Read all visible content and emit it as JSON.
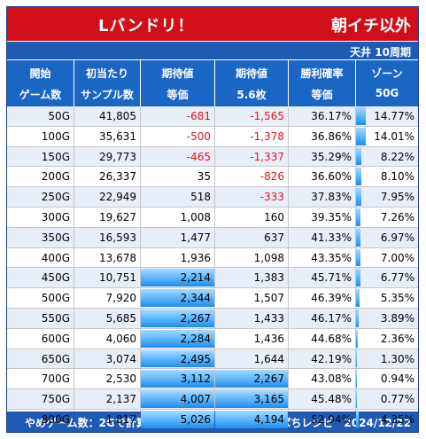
{
  "title": {
    "left": "Lバンドリ！",
    "right": "朝イチ以外"
  },
  "ceiling_label": "天井 10周期",
  "headers": [
    {
      "line1": "開始",
      "line2": "ゲーム数"
    },
    {
      "line1": "初当たり",
      "line2": "サンプル数"
    },
    {
      "line1": "期待値",
      "line2": "等価"
    },
    {
      "line1": "期待値",
      "line2": "5.6枚"
    },
    {
      "line1": "勝利確率",
      "line2": "等価"
    },
    {
      "line1": "ゾーン",
      "line2": "50G"
    }
  ],
  "rows": [
    {
      "start": "50G",
      "samples": "41,805",
      "ev_eq": "-681",
      "ev_56": "-1,565",
      "win": "36.17%",
      "zone": "14.77%",
      "ev_eq_bar": 0,
      "ev_56_bar": 0,
      "zone_bar": 0.148
    },
    {
      "start": "100G",
      "samples": "35,631",
      "ev_eq": "-500",
      "ev_56": "-1,378",
      "win": "36.86%",
      "zone": "14.01%",
      "ev_eq_bar": 0,
      "ev_56_bar": 0,
      "zone_bar": 0.14
    },
    {
      "start": "150G",
      "samples": "29,773",
      "ev_eq": "-465",
      "ev_56": "-1,337",
      "win": "35.29%",
      "zone": "8.22%",
      "ev_eq_bar": 0,
      "ev_56_bar": 0,
      "zone_bar": 0.082
    },
    {
      "start": "200G",
      "samples": "26,337",
      "ev_eq": "35",
      "ev_56": "-826",
      "win": "36.60%",
      "zone": "8.10%",
      "ev_eq_bar": 0,
      "ev_56_bar": 0,
      "zone_bar": 0.081
    },
    {
      "start": "250G",
      "samples": "22,949",
      "ev_eq": "518",
      "ev_56": "-333",
      "win": "37.83%",
      "zone": "7.95%",
      "ev_eq_bar": 0,
      "ev_56_bar": 0,
      "zone_bar": 0.0795
    },
    {
      "start": "300G",
      "samples": "19,627",
      "ev_eq": "1,008",
      "ev_56": "160",
      "win": "39.35%",
      "zone": "7.26%",
      "ev_eq_bar": 0,
      "ev_56_bar": 0,
      "zone_bar": 0.0726
    },
    {
      "start": "350G",
      "samples": "16,593",
      "ev_eq": "1,477",
      "ev_56": "637",
      "win": "41.33%",
      "zone": "6.97%",
      "ev_eq_bar": 0,
      "ev_56_bar": 0,
      "zone_bar": 0.0697
    },
    {
      "start": "400G",
      "samples": "13,678",
      "ev_eq": "1,936",
      "ev_56": "1,098",
      "win": "43.35%",
      "zone": "7.00%",
      "ev_eq_bar": 0,
      "ev_56_bar": 0,
      "zone_bar": 0.07
    },
    {
      "start": "450G",
      "samples": "10,751",
      "ev_eq": "2,214",
      "ev_56": "1,383",
      "win": "45.71%",
      "zone": "6.77%",
      "ev_eq_bar": 1,
      "ev_56_bar": 0,
      "zone_bar": 0.0677
    },
    {
      "start": "500G",
      "samples": "7,920",
      "ev_eq": "2,344",
      "ev_56": "1,507",
      "win": "46.39%",
      "zone": "5.35%",
      "ev_eq_bar": 1,
      "ev_56_bar": 0,
      "zone_bar": 0.0535
    },
    {
      "start": "550G",
      "samples": "5,685",
      "ev_eq": "2,267",
      "ev_56": "1,433",
      "win": "46.17%",
      "zone": "3.89%",
      "ev_eq_bar": 1,
      "ev_56_bar": 0,
      "zone_bar": 0.0389
    },
    {
      "start": "600G",
      "samples": "4,060",
      "ev_eq": "2,284",
      "ev_56": "1,436",
      "win": "44.68%",
      "zone": "2.36%",
      "ev_eq_bar": 1,
      "ev_56_bar": 0,
      "zone_bar": 0.0236
    },
    {
      "start": "650G",
      "samples": "3,074",
      "ev_eq": "2,495",
      "ev_56": "1,644",
      "win": "42.19%",
      "zone": "1.30%",
      "ev_eq_bar": 1,
      "ev_56_bar": 0,
      "zone_bar": 0.013
    },
    {
      "start": "700G",
      "samples": "2,530",
      "ev_eq": "3,112",
      "ev_56": "2,267",
      "win": "43.08%",
      "zone": "0.94%",
      "ev_eq_bar": 1,
      "ev_56_bar": 1,
      "zone_bar": 0.0094
    },
    {
      "start": "750G",
      "samples": "2,137",
      "ev_eq": "4,007",
      "ev_56": "3,165",
      "win": "45.48%",
      "zone": "0.77%",
      "ev_eq_bar": 1,
      "ev_56_bar": 1,
      "zone_bar": 0.0077
    },
    {
      "start": "800G",
      "samples": "1,817",
      "ev_eq": "5,026",
      "ev_56": "4,194",
      "win": "52.94%",
      "zone": "4.35%",
      "ev_eq_bar": 1,
      "ev_56_bar": 1,
      "zone_bar": 0.0435
    }
  ],
  "footer": {
    "left": "やめゲーム数：2Gで計算",
    "right": "すろぱちレシピ　2024/12/22"
  },
  "colors": {
    "title_bg": "#d10f1a",
    "header_bg": "#1a66c4",
    "band_bg": "#1d5bb5",
    "negative": "#e0141e",
    "bar": "#1f8ce8"
  }
}
